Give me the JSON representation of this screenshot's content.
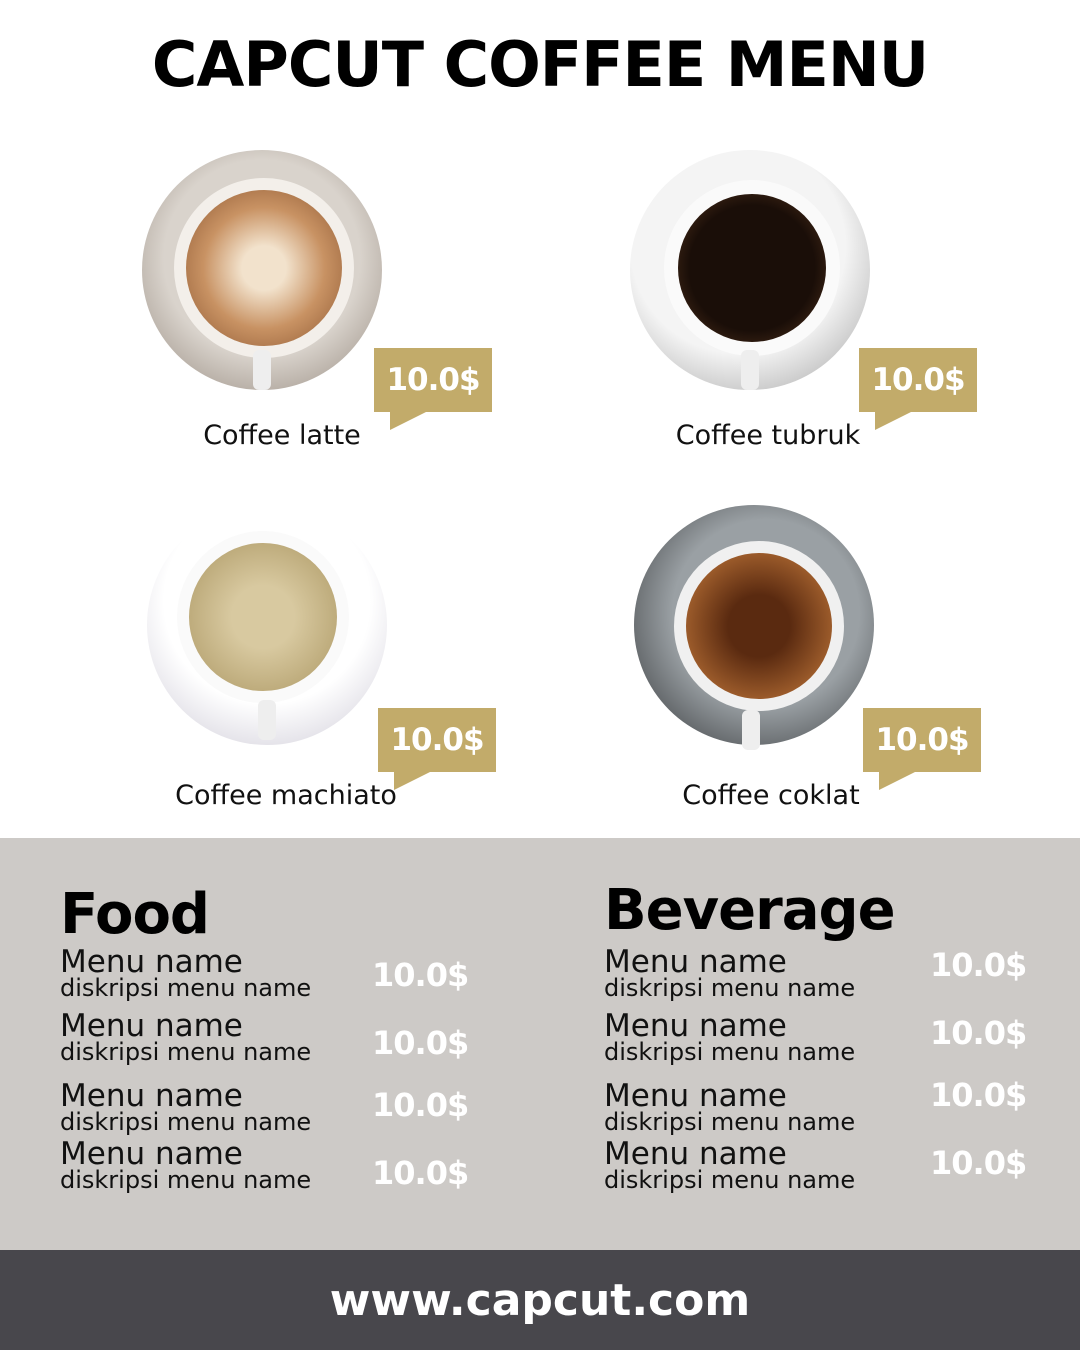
{
  "title": "CAPCUT COFFEE MENU",
  "colors": {
    "accent": "#c2ab6a",
    "menu_bg": "#cdcac7",
    "footer_bg": "#48474c"
  },
  "coffees": [
    {
      "name": "Coffee latte",
      "price": "10.0$"
    },
    {
      "name": "Coffee tubruk",
      "price": "10.0$"
    },
    {
      "name": "Coffee machiato",
      "price": "10.0$"
    },
    {
      "name": "Coffee coklat",
      "price": "10.0$"
    }
  ],
  "food": {
    "heading": "Food",
    "items": [
      {
        "name": "Menu name",
        "desc": "diskripsi menu name",
        "price": "10.0$"
      },
      {
        "name": "Menu name",
        "desc": "diskripsi menu name",
        "price": "10.0$"
      },
      {
        "name": "Menu name",
        "desc": "diskripsi menu name",
        "price": "10.0$"
      },
      {
        "name": "Menu name",
        "desc": "diskripsi menu name",
        "price": "10.0$"
      }
    ]
  },
  "beverage": {
    "heading": "Beverage",
    "items": [
      {
        "name": "Menu name",
        "desc": "diskripsi menu name",
        "price": "10.0$"
      },
      {
        "name": "Menu name",
        "desc": "diskripsi menu name",
        "price": "10.0$"
      },
      {
        "name": "Menu name",
        "desc": "diskripsi menu name",
        "price": "10.0$"
      },
      {
        "name": "Menu name",
        "desc": "diskripsi menu name",
        "price": "10.0$"
      }
    ]
  },
  "footer": "www.capcut.com"
}
